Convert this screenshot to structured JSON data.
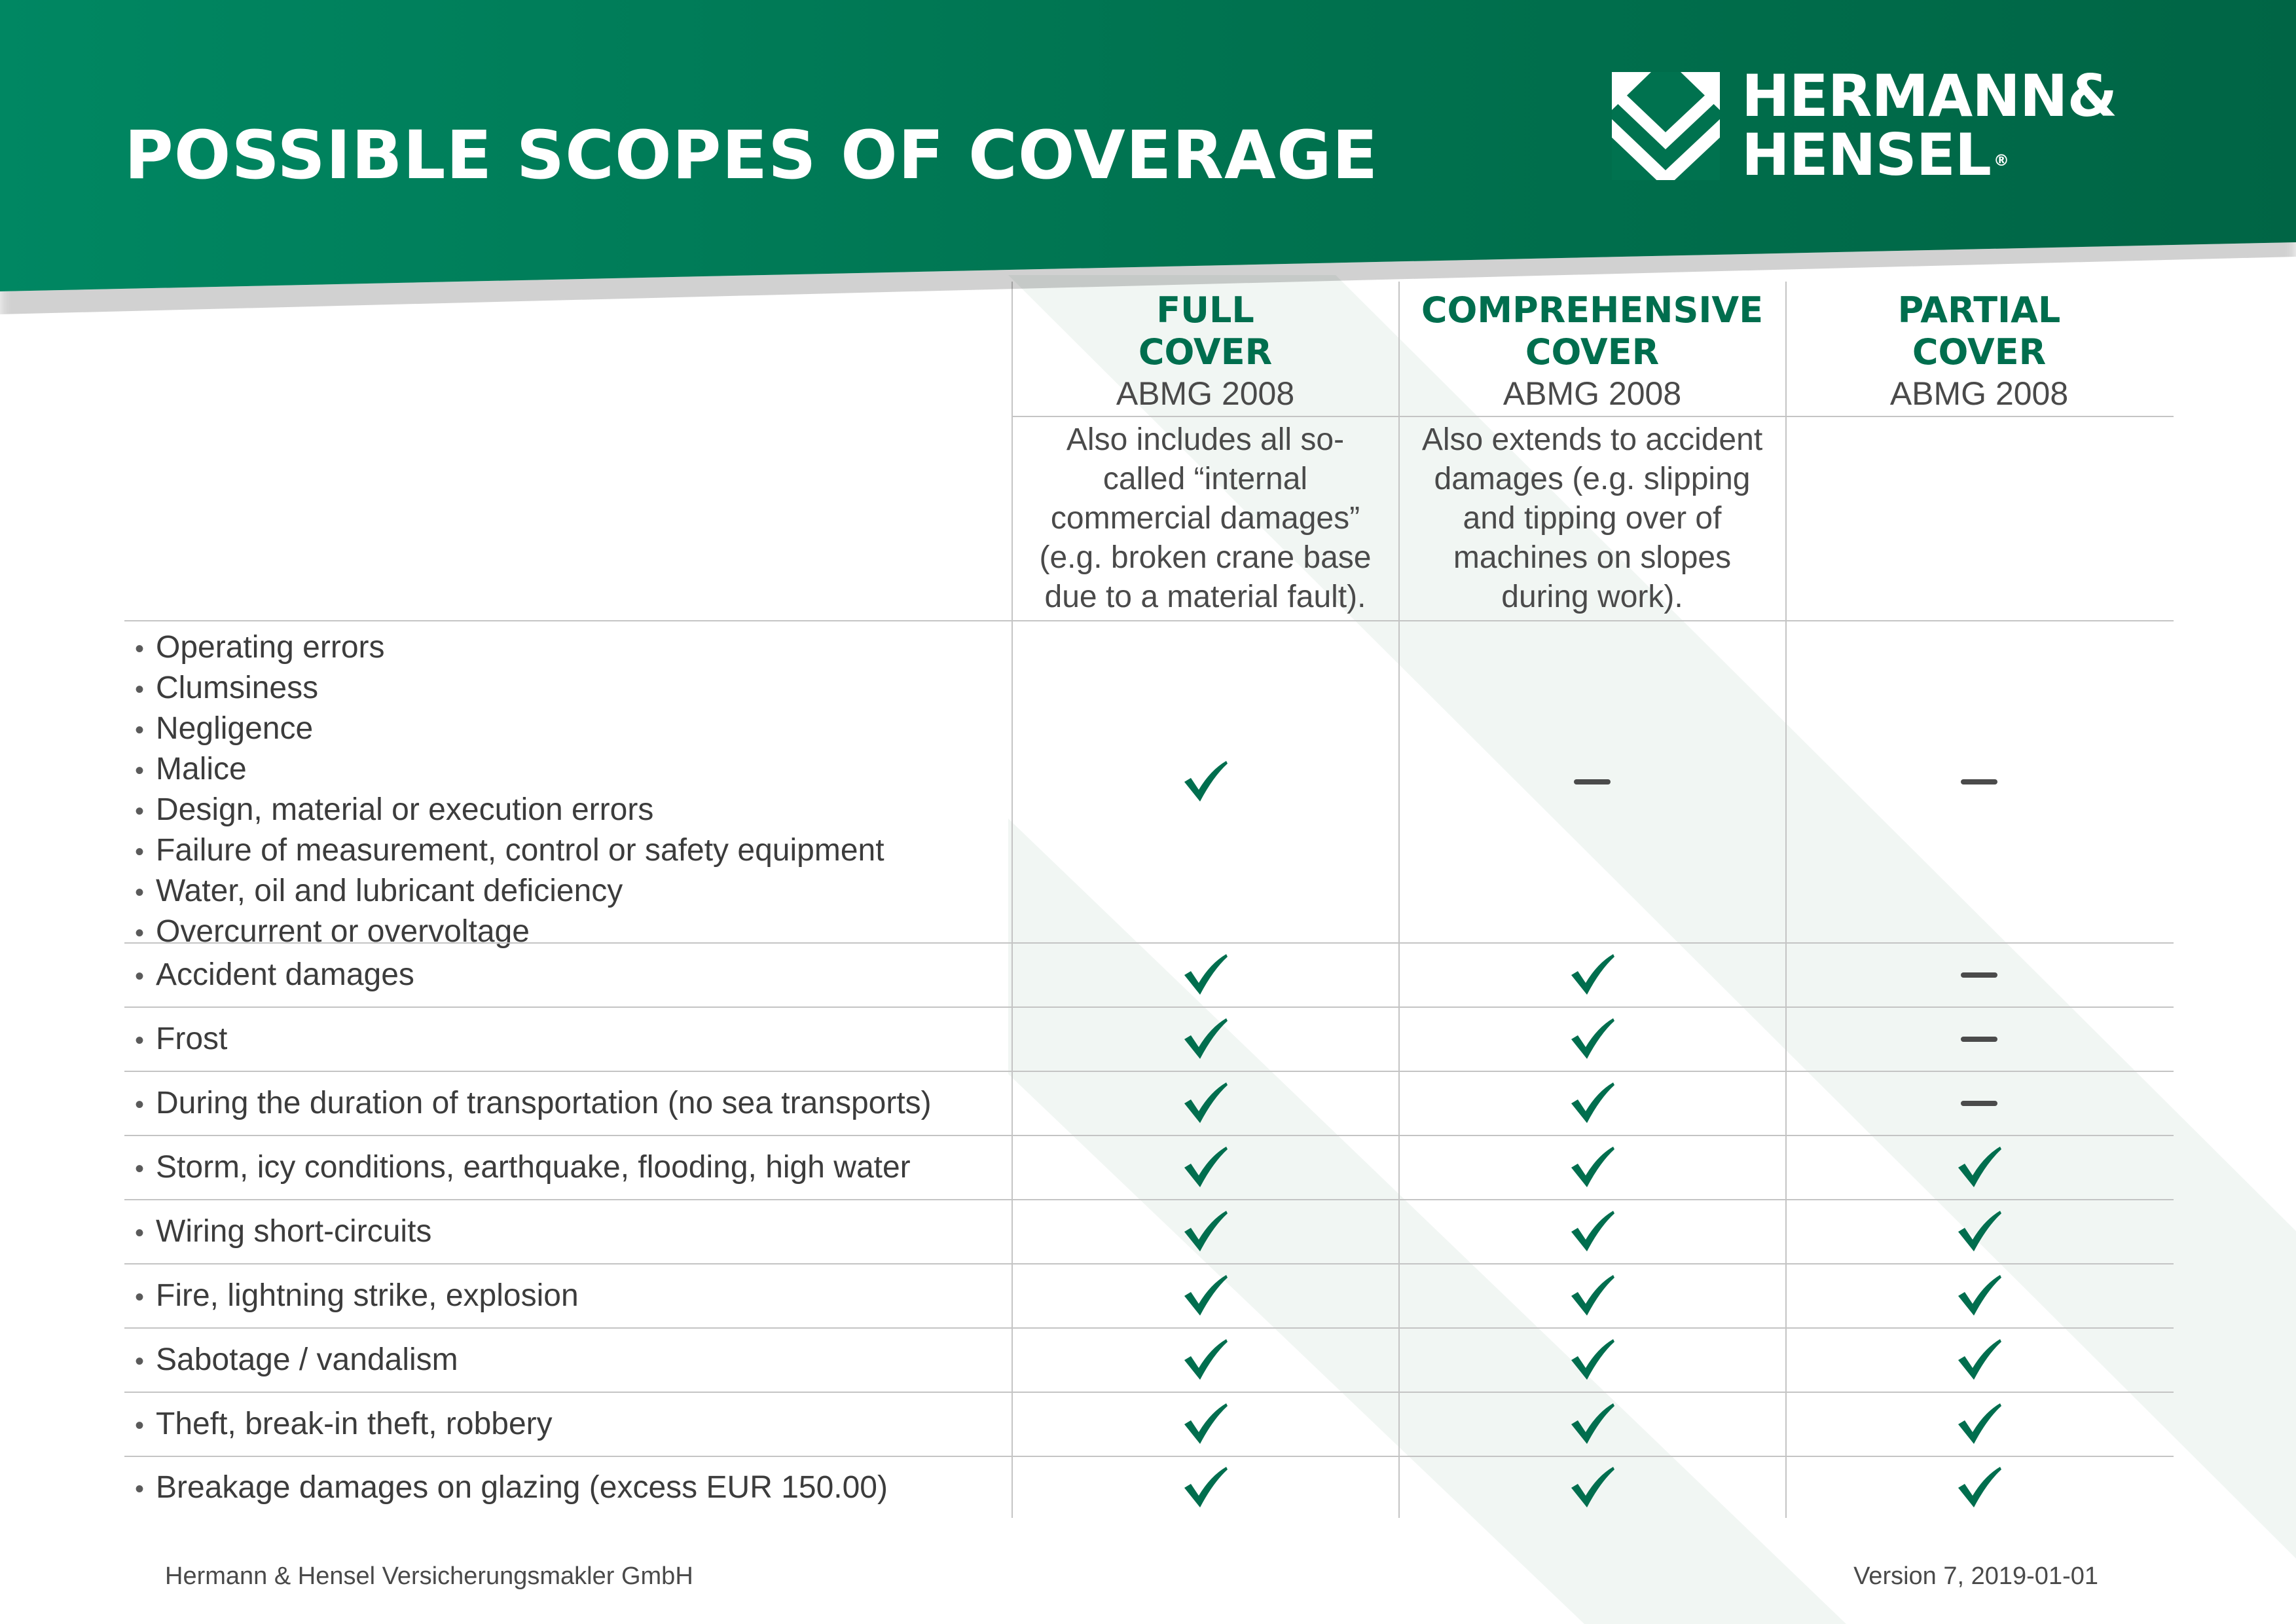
{
  "header": {
    "title": "POSSIBLE SCOPES OF COVERAGE",
    "logo_line1": "HERMANN&",
    "logo_line2": "HENSEL",
    "logo_reg": "®"
  },
  "columns": [
    {
      "title1": "FULL",
      "title2": "COVER",
      "standard": "ABMG 2008",
      "description": [
        "Also includes all so-",
        "called “internal",
        "commercial damages”",
        "(e.g. broken crane base",
        "due to a material fault)."
      ]
    },
    {
      "title1": "COMPREHENSIVE",
      "title2": "COVER",
      "standard": "ABMG 2008",
      "description": [
        "Also extends to accident",
        "damages (e.g. slipping",
        "and tipping over of",
        "machines on slopes",
        "during work)."
      ]
    },
    {
      "title1": "PARTIAL",
      "title2": "COVER",
      "standard": "ABMG 2008",
      "description": []
    }
  ],
  "rows": [
    {
      "items": [
        "Operating errors",
        "Clumsiness",
        "Negligence",
        "Malice",
        "Design, material or execution errors",
        "Failure of measurement, control or safety equipment",
        "Water, oil and lubricant deficiency",
        "Overcurrent or overvoltage"
      ],
      "coverage": [
        "check",
        "dash",
        "dash"
      ]
    },
    {
      "items": [
        "Accident damages"
      ],
      "coverage": [
        "check",
        "check",
        "dash"
      ]
    },
    {
      "items": [
        "Frost"
      ],
      "coverage": [
        "check",
        "check",
        "dash"
      ]
    },
    {
      "items": [
        "During the duration of transportation (no sea transports)"
      ],
      "coverage": [
        "check",
        "check",
        "dash"
      ]
    },
    {
      "items": [
        "Storm, icy conditions, earthquake, flooding, high water"
      ],
      "coverage": [
        "check",
        "check",
        "check"
      ]
    },
    {
      "items": [
        "Wiring short-circuits"
      ],
      "coverage": [
        "check",
        "check",
        "check"
      ]
    },
    {
      "items": [
        "Fire, lightning strike, explosion"
      ],
      "coverage": [
        "check",
        "check",
        "check"
      ]
    },
    {
      "items": [
        "Sabotage / vandalism"
      ],
      "coverage": [
        "check",
        "check",
        "check"
      ]
    },
    {
      "items": [
        "Theft, break-in theft, robbery"
      ],
      "coverage": [
        "check",
        "check",
        "check"
      ]
    },
    {
      "items": [
        "Breakage damages on glazing (excess EUR 150.00)"
      ],
      "coverage": [
        "check",
        "check",
        "check"
      ]
    }
  ],
  "footer": {
    "company": "Hermann & Hensel Versicherungsmakler GmbH",
    "version": "Version 7, 2019-01-01"
  },
  "colors": {
    "header_green": "#00784f",
    "accent_green": "#006e4e",
    "dash_gray": "#4b4b4b",
    "rule_gray": "#c4c4c4",
    "stripe": "#f1f6f3"
  }
}
